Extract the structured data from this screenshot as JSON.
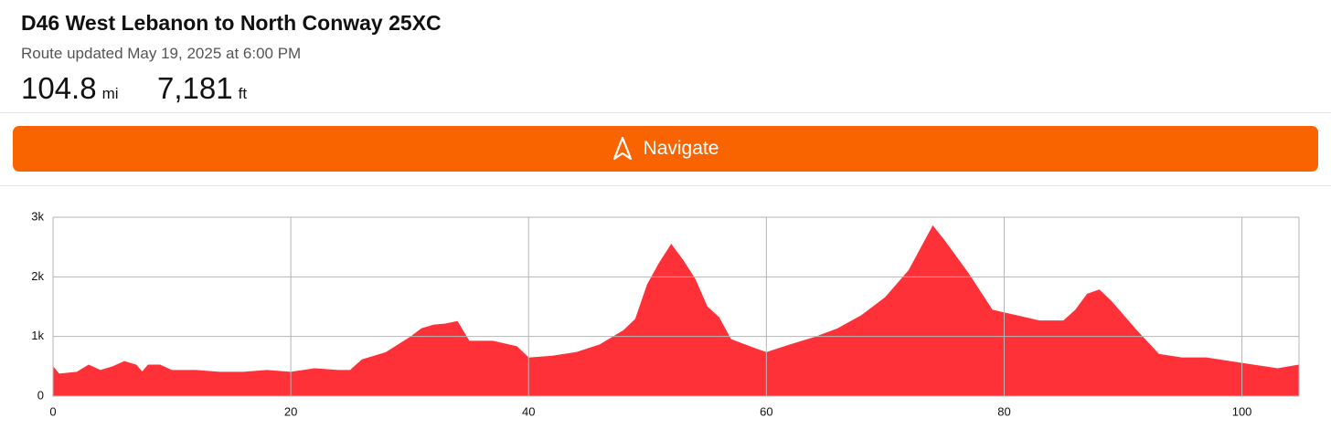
{
  "header": {
    "title": "D46 West Lebanon to North Conway 25XC",
    "subtitle": "Route updated May 19, 2025 at 6:00 PM",
    "stats": [
      {
        "value": "104.8",
        "unit": "mi"
      },
      {
        "value": "7,181",
        "unit": "ft"
      }
    ]
  },
  "button": {
    "label": "Navigate"
  },
  "chart_data": {
    "type": "area",
    "color": "#ff3138",
    "grid": true,
    "x": [
      0,
      0.5,
      2,
      3,
      4,
      5,
      6,
      7,
      7.5,
      8,
      9,
      10,
      12,
      14,
      16,
      18,
      20,
      22,
      24,
      25,
      26,
      28,
      30,
      31,
      32,
      33,
      34,
      35,
      37,
      39,
      40,
      42,
      44,
      46,
      48,
      49,
      50,
      51,
      52,
      53,
      54,
      55,
      56,
      57,
      59,
      60,
      62,
      64,
      66,
      68,
      70,
      72,
      73,
      74,
      75,
      77,
      79,
      81,
      83,
      85,
      86,
      87,
      88,
      89,
      91,
      93,
      95,
      97,
      99,
      100,
      102,
      103,
      104.8
    ],
    "values": [
      490,
      370,
      400,
      520,
      430,
      490,
      580,
      520,
      400,
      520,
      520,
      430,
      430,
      400,
      400,
      430,
      400,
      460,
      430,
      430,
      610,
      730,
      980,
      1130,
      1190,
      1210,
      1250,
      920,
      920,
      830,
      640,
      670,
      730,
      860,
      1100,
      1290,
      1870,
      2230,
      2540,
      2270,
      1960,
      1500,
      1320,
      950,
      800,
      730,
      860,
      980,
      1130,
      1350,
      1650,
      2110,
      2480,
      2850,
      2600,
      2050,
      1440,
      1350,
      1260,
      1260,
      1440,
      1710,
      1780,
      1590,
      1130,
      700,
      640,
      640,
      580,
      550,
      490,
      460,
      520
    ],
    "xlim": [
      0,
      104.8
    ],
    "ylim": [
      0,
      3000
    ],
    "xticks": [
      0,
      20,
      40,
      60,
      80,
      100
    ],
    "yticks": [
      0,
      {
        "value": 1000,
        "label": "1k"
      },
      {
        "value": 2000,
        "label": "2k"
      },
      {
        "value": 3000,
        "label": "3k"
      }
    ]
  }
}
